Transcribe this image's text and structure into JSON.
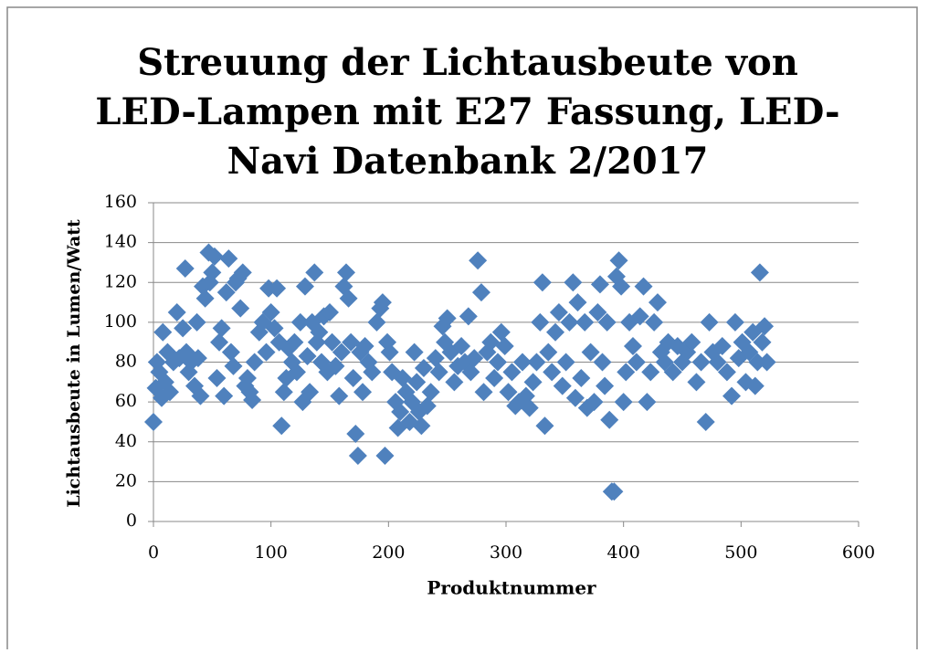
{
  "chart_data": {
    "type": "scatter",
    "title": [
      "Streuung der Lichtausbeute von",
      "LED-Lampen mit E27 Fassung, LED-",
      "Navi Datenbank 2/2017"
    ],
    "xlabel": "Produktnummer",
    "ylabel": "Lichtausbeute in Lumen/Watt",
    "color": "#4f81bd",
    "grid": true,
    "xlim": [
      0,
      600
    ],
    "xticks": [
      0,
      100,
      200,
      300,
      400,
      500,
      600
    ],
    "ylim": [
      0,
      160
    ],
    "yticks": [
      0,
      20,
      40,
      60,
      80,
      100,
      120,
      140,
      160
    ],
    "x": [
      0,
      2,
      3,
      5,
      7,
      8,
      10,
      12,
      14,
      17,
      20,
      22,
      25,
      27,
      28,
      30,
      32,
      35,
      37,
      38,
      40,
      42,
      44,
      47,
      48,
      50,
      52,
      54,
      56,
      58,
      60,
      62,
      64,
      66,
      68,
      70,
      72,
      74,
      76,
      78,
      80,
      82,
      84,
      86,
      90,
      93,
      96,
      98,
      100,
      103,
      105,
      107,
      109,
      111,
      113,
      115,
      118,
      120,
      122,
      125,
      127,
      129,
      131,
      133,
      135,
      137,
      139,
      141,
      143,
      145,
      148,
      150,
      152,
      155,
      158,
      160,
      162,
      164,
      166,
      168,
      170,
      172,
      174,
      176,
      178,
      180,
      183,
      186,
      190,
      193,
      195,
      197,
      199,
      201,
      203,
      206,
      208,
      210,
      212,
      215,
      218,
      220,
      222,
      224,
      226,
      228,
      230,
      233,
      236,
      240,
      243,
      246,
      248,
      250,
      253,
      256,
      259,
      262,
      265,
      268,
      270,
      273,
      276,
      279,
      281,
      284,
      287,
      290,
      293,
      296,
      299,
      302,
      305,
      308,
      311,
      314,
      317,
      320,
      323,
      326,
      329,
      331,
      333,
      336,
      339,
      342,
      345,
      348,
      351,
      354,
      357,
      359,
      361,
      364,
      367,
      369,
      372,
      375,
      378,
      380,
      382,
      384,
      386,
      388,
      390,
      392,
      394,
      396,
      398,
      400,
      402,
      405,
      408,
      411,
      414,
      417,
      420,
      423,
      426,
      429,
      432,
      435,
      438,
      442,
      446,
      450,
      454,
      458,
      462,
      466,
      470,
      473,
      476,
      480,
      484,
      488,
      492,
      495,
      498,
      501,
      504,
      507,
      510,
      512,
      514,
      516,
      518,
      520,
      522
    ],
    "y": [
      50,
      67,
      80,
      75,
      62,
      95,
      70,
      85,
      65,
      80,
      105,
      82,
      97,
      127,
      85,
      75,
      80,
      68,
      100,
      82,
      63,
      118,
      112,
      135,
      120,
      125,
      133,
      72,
      90,
      97,
      63,
      115,
      132,
      85,
      78,
      120,
      122,
      107,
      125,
      68,
      72,
      65,
      61,
      80,
      95,
      100,
      85,
      117,
      105,
      97,
      117,
      90,
      48,
      65,
      72,
      87,
      80,
      90,
      75,
      100,
      60,
      118,
      83,
      65,
      100,
      125,
      90,
      95,
      80,
      103,
      75,
      105,
      90,
      78,
      63,
      85,
      118,
      125,
      112,
      90,
      72,
      44,
      33,
      85,
      65,
      88,
      80,
      75,
      100,
      107,
      110,
      33,
      90,
      85,
      75,
      60,
      47,
      55,
      72,
      65,
      50,
      60,
      85,
      70,
      55,
      48,
      77,
      58,
      65,
      82,
      75,
      98,
      90,
      102,
      85,
      70,
      78,
      88,
      80,
      103,
      75,
      82,
      131,
      115,
      65,
      85,
      90,
      72,
      80,
      95,
      88,
      65,
      75,
      58,
      60,
      80,
      63,
      57,
      70,
      80,
      100,
      120,
      48,
      85,
      75,
      95,
      105,
      68,
      80,
      100,
      120,
      62,
      110,
      72,
      100,
      57,
      85,
      60,
      105,
      119,
      80,
      68,
      100,
      51,
      15,
      15,
      123,
      131,
      118,
      60,
      75,
      100,
      88,
      80,
      103,
      118,
      60,
      75,
      100,
      110,
      85,
      80,
      90,
      75,
      88,
      80,
      85,
      90,
      70,
      80,
      50,
      100,
      85,
      80,
      88,
      75,
      63,
      100,
      82,
      90,
      70,
      85,
      95,
      68,
      80,
      125,
      90,
      98,
      80
    ]
  }
}
